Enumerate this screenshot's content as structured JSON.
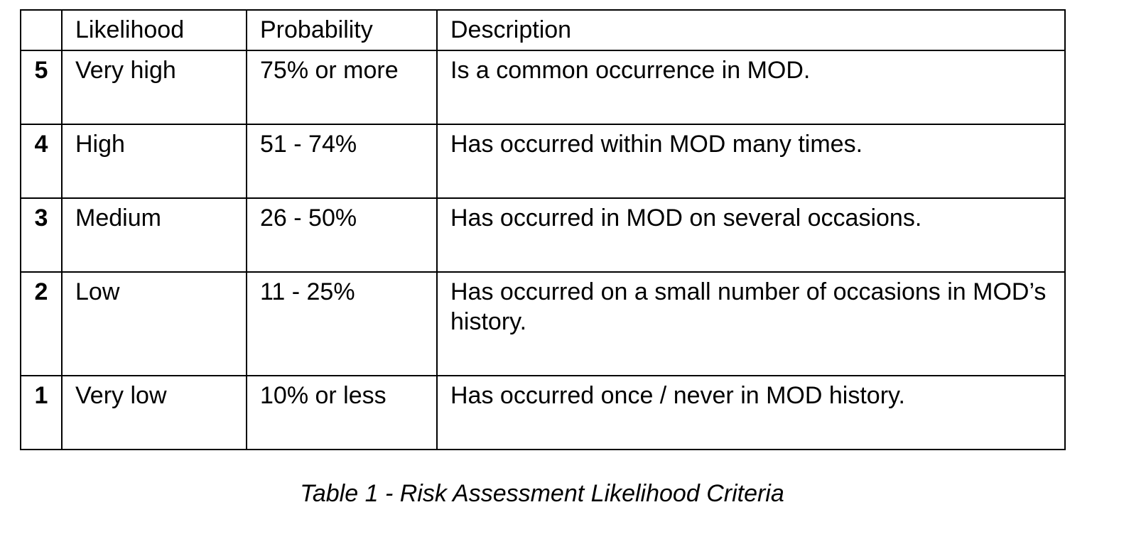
{
  "table": {
    "headers": [
      "",
      "Likelihood",
      "Probability",
      "Description"
    ],
    "rows": [
      {
        "level": "5",
        "likelihood": "Very high",
        "probability": "75% or more",
        "description": "Is a common occurrence in MOD."
      },
      {
        "level": "4",
        "likelihood": "High",
        "probability": "51 - 74%",
        "description": "Has occurred within MOD many times."
      },
      {
        "level": "3",
        "likelihood": "Medium",
        "probability": "26 - 50%",
        "description": "Has occurred in MOD on several occasions."
      },
      {
        "level": "2",
        "likelihood": "Low",
        "probability": "11 - 25%",
        "description": "Has occurred on a small number of occasions in MOD’s history."
      },
      {
        "level": "1",
        "likelihood": "Very low",
        "probability": "10% or less",
        "description": "Has occurred once / never in MOD history."
      }
    ]
  },
  "caption": "Table 1 - Risk Assessment Likelihood Criteria"
}
